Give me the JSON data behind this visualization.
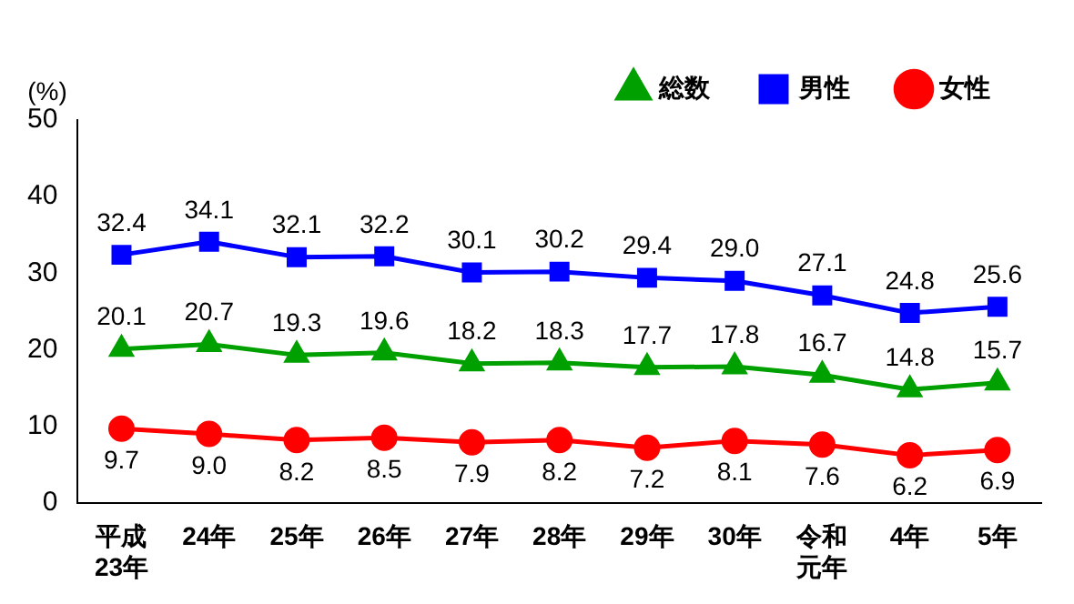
{
  "chart_data": {
    "type": "line",
    "ylabel": "(%)",
    "categories": [
      "平成23年",
      "24年",
      "25年",
      "26年",
      "27年",
      "28年",
      "29年",
      "30年",
      "令和元年",
      "4年",
      "5年"
    ],
    "series": [
      {
        "name": "総数",
        "color": "#00a000",
        "marker": "triangle",
        "values": [
          20.1,
          20.7,
          19.3,
          19.6,
          18.2,
          18.3,
          17.7,
          17.8,
          16.7,
          14.8,
          15.7
        ],
        "value_labels": [
          "20.1",
          "20.7",
          "19.3",
          "19.6",
          "18.2",
          "18.3",
          "17.7",
          "17.8",
          "16.7",
          "14.8",
          "15.7"
        ]
      },
      {
        "name": "男性",
        "color": "#0000ff",
        "marker": "square",
        "values": [
          32.4,
          34.1,
          32.1,
          32.2,
          30.1,
          30.2,
          29.4,
          29.0,
          27.1,
          24.8,
          25.6
        ],
        "value_labels": [
          "32.4",
          "34.1",
          "32.1",
          "32.2",
          "30.1",
          "30.2",
          "29.4",
          "29.0",
          "27.1",
          "24.8",
          "25.6"
        ]
      },
      {
        "name": "女性",
        "color": "#ff0000",
        "marker": "circle",
        "values": [
          9.7,
          9.0,
          8.2,
          8.5,
          7.9,
          8.2,
          7.2,
          8.1,
          7.6,
          6.2,
          6.9
        ],
        "value_labels": [
          "9.7",
          "9.0",
          "8.2",
          "8.5",
          "7.9",
          "8.2",
          "7.2",
          "8.1",
          "7.6",
          "6.2",
          "6.9"
        ]
      }
    ],
    "ylim": [
      0,
      50
    ],
    "yticks": [
      0,
      10,
      20,
      30,
      40,
      50
    ],
    "grid": false,
    "legend": "top right"
  }
}
